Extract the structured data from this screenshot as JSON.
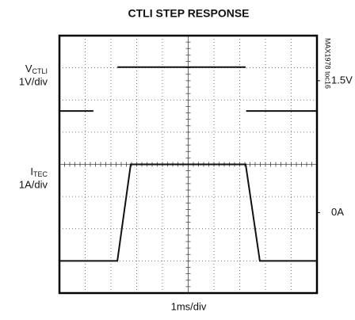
{
  "chart_data": {
    "type": "line",
    "title": "CTLI STEP RESPONSE",
    "x_label": "1ms/div",
    "note": "MAX1978 toc16",
    "xlim": [
      0,
      10
    ],
    "ylim": [
      -5.1,
      2.9
    ],
    "yticks": [
      {
        "value": 1.5,
        "label": "1.5V"
      }
    ],
    "y2lim": [
      -2.5,
      5.5
    ],
    "y2ticks": [
      {
        "value": 0,
        "label": "0A"
      }
    ],
    "series": [
      {
        "symbol": "V",
        "subscript": "CTLI",
        "scale": "1V/div",
        "color": "#111111",
        "x": [
          0,
          1.32,
          1.32,
          2.25,
          7.23,
          7.23,
          7.25,
          10
        ],
        "values": [
          0.56,
          0.56,
          null,
          1.92,
          1.92,
          null,
          0.56,
          0.56
        ]
      },
      {
        "symbol": "I",
        "subscript": "TEC",
        "scale": "1A/div",
        "color": "#111111",
        "axis": "y2",
        "x": [
          0,
          2.25,
          2.77,
          7.23,
          7.78,
          10
        ],
        "values": [
          -1.5,
          -1.5,
          1.5,
          1.5,
          -1.5,
          -1.5
        ]
      }
    ]
  }
}
